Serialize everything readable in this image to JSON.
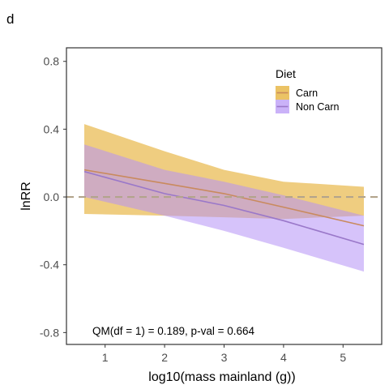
{
  "chart_data": {
    "type": "line",
    "panel_label": "d",
    "xlabel": "log10(mass mainland (g))",
    "ylabel": "lnRR",
    "xlim": [
      0.35,
      5.65
    ],
    "ylim": [
      -0.87,
      0.88
    ],
    "x_ticks": [
      1,
      2,
      3,
      4,
      5
    ],
    "y_ticks": [
      -0.8,
      -0.4,
      0.0,
      0.4,
      0.8
    ],
    "y_tick_labels": [
      "-0.8",
      "-0.4",
      "0.0",
      "0.4",
      "0.8"
    ],
    "reference_line": {
      "y": 0,
      "style": "dashed",
      "color": "#b3a48c"
    },
    "legend": {
      "title": "Diet",
      "position": "top-right"
    },
    "annotation": "QM(df = 1) = 0.189, p-val = 0.664",
    "series": [
      {
        "name": "Carn",
        "line_color": "#c98a5e",
        "fill_color": "#e8b84a",
        "fill_opacity": 0.7,
        "x": [
          0.65,
          2.0,
          3.0,
          4.0,
          5.35
        ],
        "fit": [
          0.16,
          0.08,
          0.02,
          -0.06,
          -0.17
        ],
        "lower": [
          -0.1,
          -0.11,
          -0.12,
          -0.13,
          -0.11
        ],
        "upper": [
          0.43,
          0.27,
          0.16,
          0.09,
          0.06
        ]
      },
      {
        "name": "Non Carn",
        "line_color": "#9a78c9",
        "fill_color": "#b491f5",
        "fill_opacity": 0.55,
        "x": [
          0.65,
          2.0,
          3.0,
          4.0,
          5.35
        ],
        "fit": [
          0.15,
          0.02,
          -0.05,
          -0.14,
          -0.28
        ],
        "lower": [
          0.0,
          -0.11,
          -0.2,
          -0.3,
          -0.44
        ],
        "upper": [
          0.31,
          0.16,
          0.09,
          0.01,
          -0.11
        ]
      }
    ]
  }
}
